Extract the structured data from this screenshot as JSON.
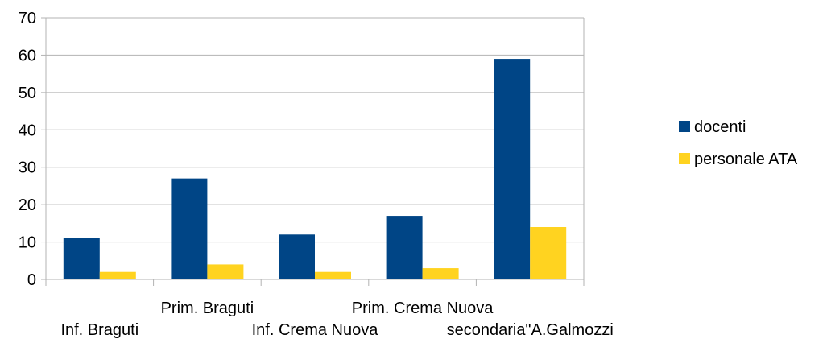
{
  "chart_data": {
    "type": "bar",
    "categories": [
      "Inf. Braguti",
      "Prim. Braguti",
      "Inf. Crema Nuova",
      "Prim. Crema Nuova",
      "secondaria\"A.Galmozzi"
    ],
    "series": [
      {
        "name": "docenti",
        "values": [
          11,
          27,
          12,
          17,
          59
        ],
        "color": "#004586"
      },
      {
        "name": "personale ATA",
        "values": [
          2,
          4,
          2,
          3,
          14
        ],
        "color": "#ffd320"
      }
    ],
    "ylim": [
      0,
      70
    ],
    "yticks": [
      0,
      10,
      20,
      30,
      40,
      50,
      60,
      70
    ],
    "grid": true,
    "legend": "right",
    "title": "",
    "xlabel": "",
    "ylabel": ""
  }
}
